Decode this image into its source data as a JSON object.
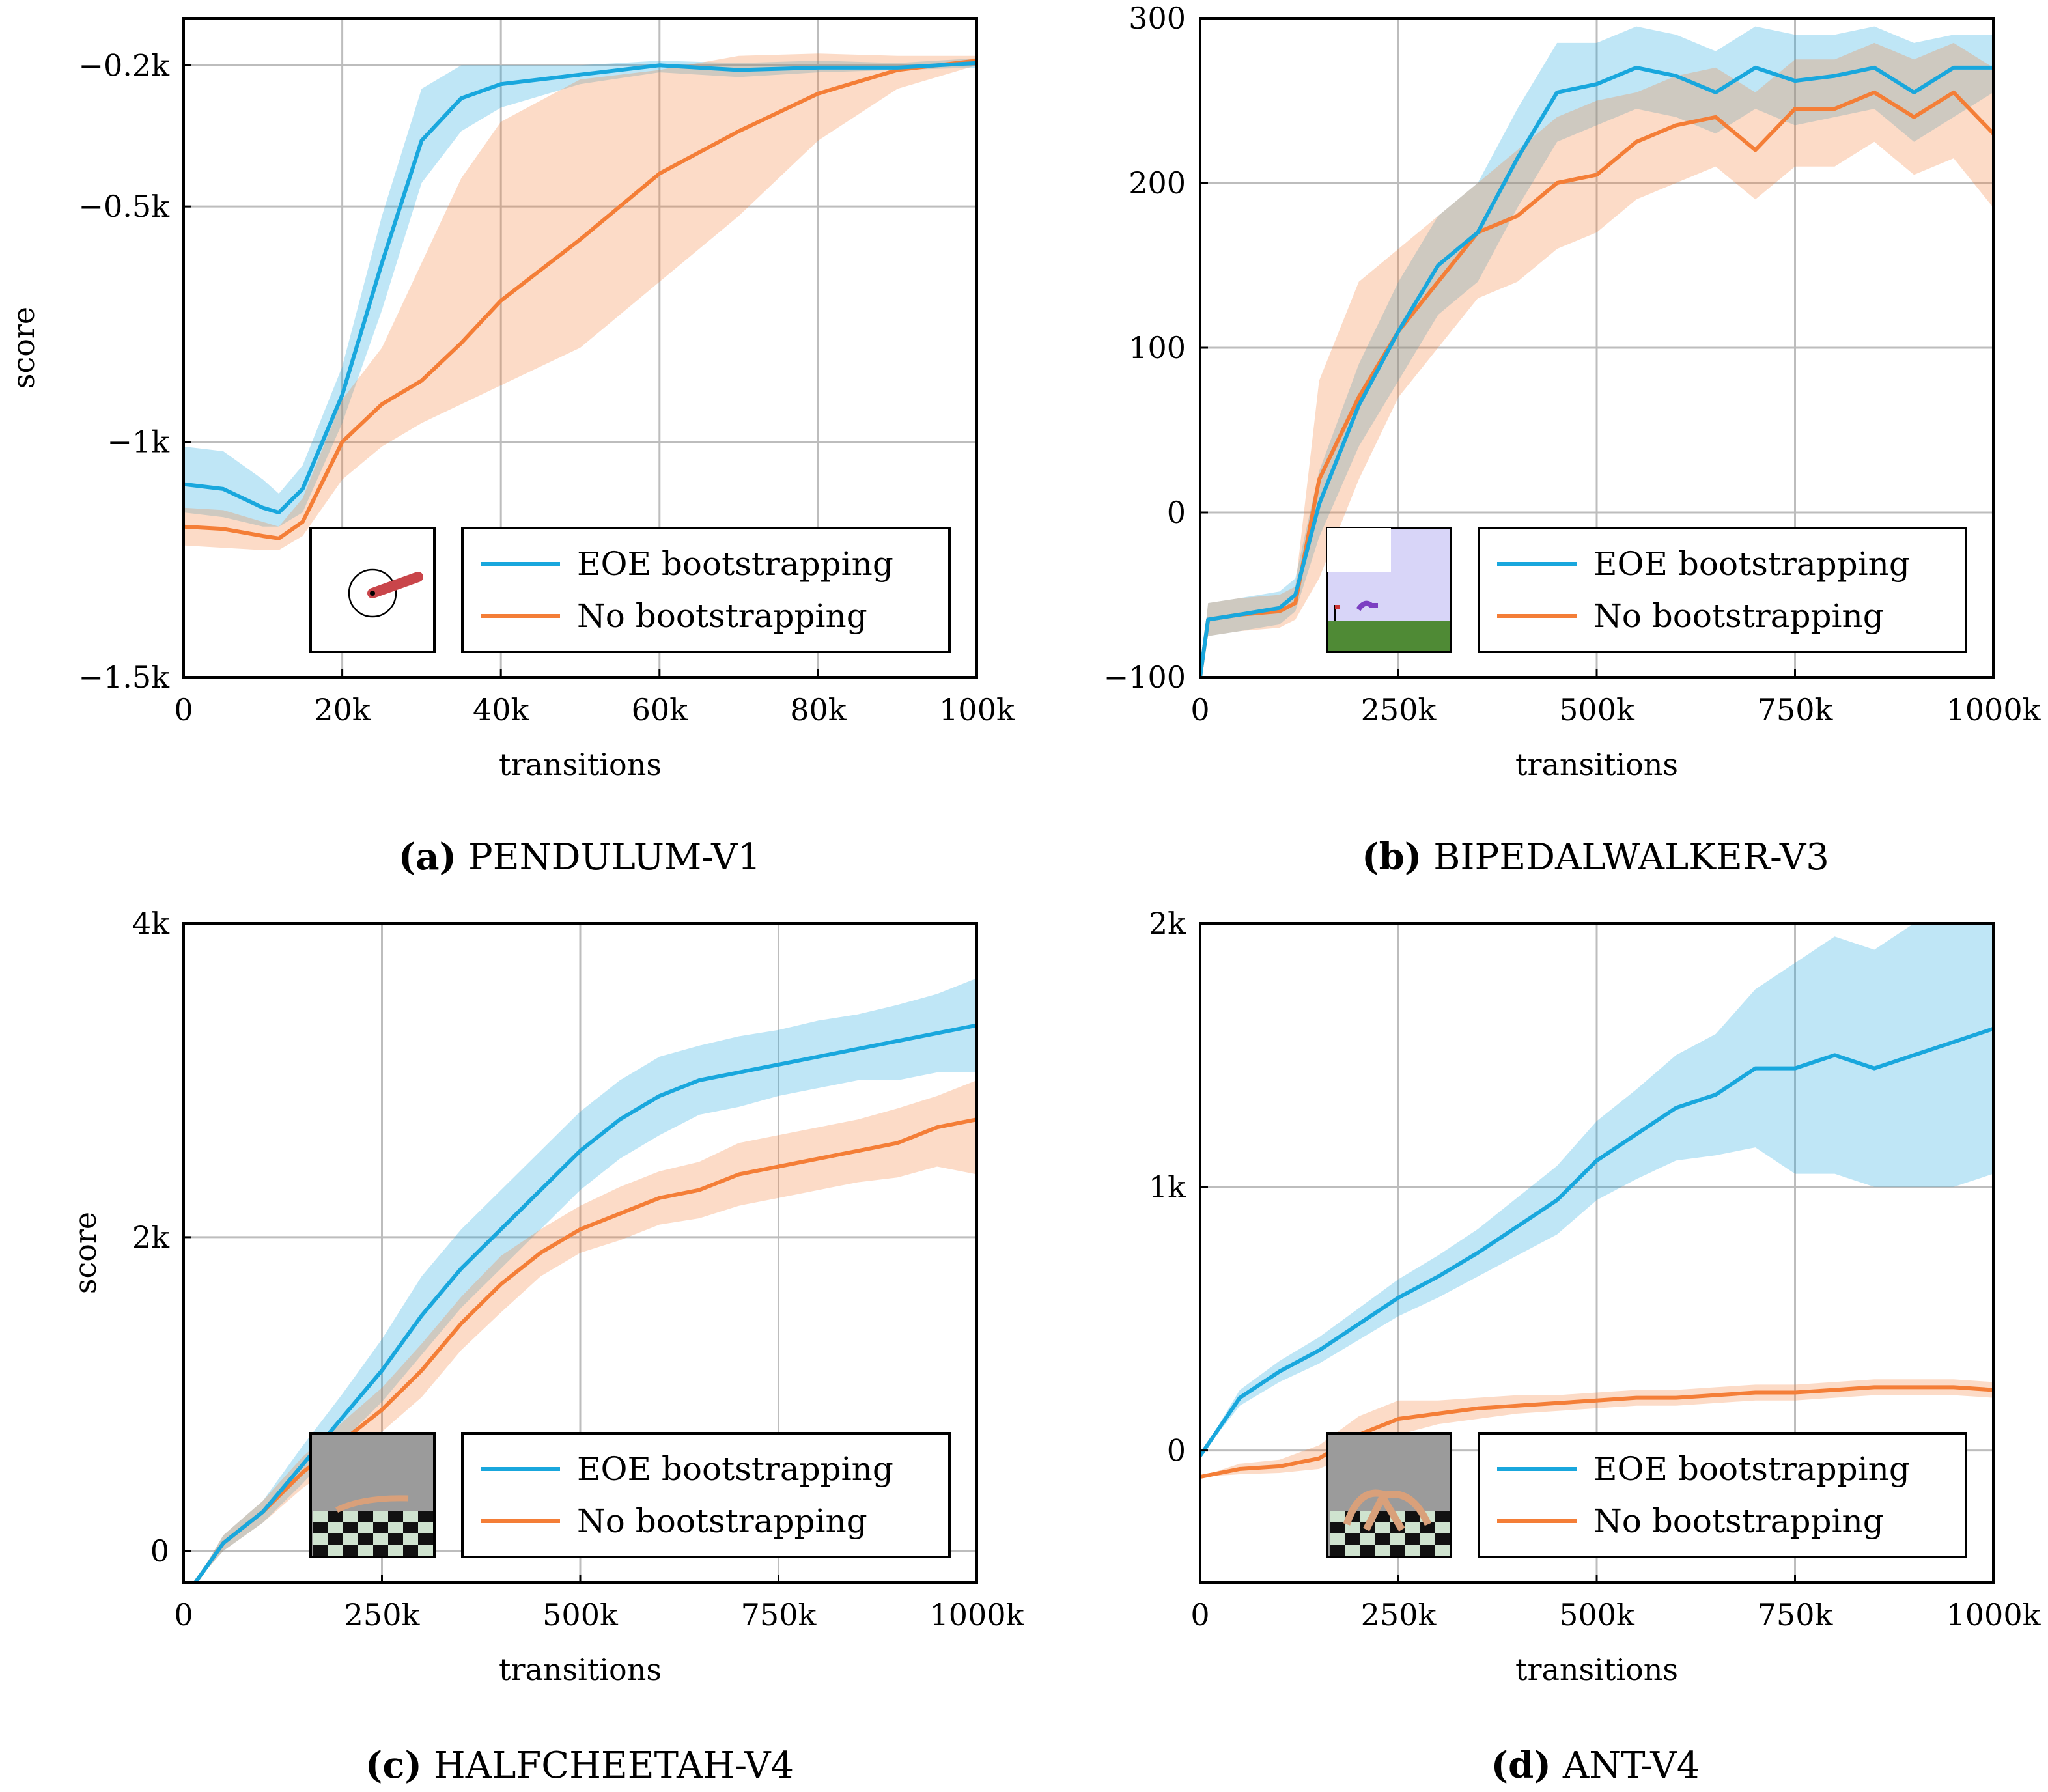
{
  "chart_data": [
    {
      "type": "line",
      "caption_letter": "(a)",
      "caption_env": "PENDULUM-V1",
      "title": "",
      "xlabel": "transitions",
      "ylabel": "score",
      "xlim": [
        0,
        100000
      ],
      "ylim": [
        -1500,
        -100
      ],
      "xticks": [
        0,
        20000,
        40000,
        60000,
        80000,
        100000
      ],
      "xtick_labels": [
        "0",
        "20k",
        "40k",
        "60k",
        "80k",
        "100k"
      ],
      "yticks": [
        -200,
        -500,
        -1000,
        -1500
      ],
      "ytick_labels": [
        "−0.2k",
        "−0.5k",
        "−1k",
        "−1.5k"
      ],
      "grid": true,
      "legend_position": "bottom-right",
      "inset_icon": "pendulum-env-thumbnail",
      "x": [
        0,
        5000,
        10000,
        12000,
        15000,
        20000,
        25000,
        30000,
        35000,
        40000,
        50000,
        60000,
        70000,
        80000,
        90000,
        100000
      ],
      "series": [
        {
          "name": "EOE bootstrapping",
          "color": "#19a7dd",
          "values": [
            -1090,
            -1100,
            -1140,
            -1150,
            -1100,
            -900,
            -620,
            -360,
            -270,
            -240,
            -220,
            -200,
            -210,
            -205,
            -205,
            -195
          ],
          "lower": [
            -1150,
            -1160,
            -1180,
            -1180,
            -1150,
            -960,
            -720,
            -450,
            -340,
            -290,
            -240,
            -215,
            -225,
            -215,
            -210,
            -205
          ],
          "upper": [
            -1010,
            -1020,
            -1080,
            -1110,
            -1050,
            -840,
            -520,
            -250,
            -200,
            -200,
            -200,
            -190,
            -195,
            -190,
            -195,
            -185
          ]
        },
        {
          "name": "No bootstrapping",
          "color": "#f47e37",
          "values": [
            -1180,
            -1185,
            -1200,
            -1205,
            -1170,
            -1000,
            -920,
            -870,
            -790,
            -700,
            -570,
            -430,
            -340,
            -260,
            -210,
            -190
          ],
          "lower": [
            -1220,
            -1225,
            -1230,
            -1230,
            -1200,
            -1080,
            -1010,
            -960,
            -920,
            -880,
            -800,
            -660,
            -520,
            -360,
            -250,
            -200
          ],
          "upper": [
            -1140,
            -1145,
            -1170,
            -1180,
            -1120,
            -910,
            -800,
            -620,
            -440,
            -320,
            -230,
            -210,
            -180,
            -175,
            -180,
            -180
          ]
        }
      ]
    },
    {
      "type": "line",
      "caption_letter": "(b)",
      "caption_env": "BIPEDALWALKER-V3",
      "title": "",
      "xlabel": "transitions",
      "ylabel": "",
      "xlim": [
        0,
        1000000
      ],
      "ylim": [
        -100,
        300
      ],
      "xticks": [
        0,
        250000,
        500000,
        750000,
        1000000
      ],
      "xtick_labels": [
        "0",
        "250k",
        "500k",
        "750k",
        "1000k"
      ],
      "yticks": [
        300,
        200,
        100,
        0,
        -100
      ],
      "ytick_labels": [
        "300",
        "200",
        "100",
        "0",
        "−100"
      ],
      "grid": true,
      "legend_position": "bottom-right",
      "inset_icon": "bipedalwalker-env-thumbnail",
      "x": [
        0,
        10000,
        50000,
        100000,
        120000,
        150000,
        200000,
        250000,
        300000,
        350000,
        400000,
        450000,
        500000,
        550000,
        600000,
        650000,
        700000,
        750000,
        800000,
        850000,
        900000,
        950000,
        1000000
      ],
      "series": [
        {
          "name": "EOE bootstrapping",
          "color": "#19a7dd",
          "values": [
            -100,
            -65,
            -62,
            -58,
            -50,
            5,
            65,
            110,
            150,
            170,
            215,
            255,
            260,
            270,
            265,
            255,
            270,
            262,
            265,
            270,
            255,
            270,
            270
          ],
          "lower": [
            -100,
            -75,
            -72,
            -68,
            -60,
            -15,
            40,
            80,
            120,
            140,
            185,
            225,
            235,
            245,
            240,
            230,
            245,
            235,
            240,
            245,
            225,
            240,
            255
          ],
          "upper": [
            -100,
            -55,
            -52,
            -48,
            -40,
            25,
            90,
            140,
            180,
            200,
            245,
            285,
            285,
            295,
            290,
            280,
            295,
            290,
            290,
            295,
            285,
            290,
            290
          ]
        },
        {
          "name": "No bootstrapping",
          "color": "#f47e37",
          "values": [
            -100,
            -65,
            -62,
            -60,
            -55,
            20,
            70,
            110,
            140,
            170,
            180,
            200,
            205,
            225,
            235,
            240,
            220,
            245,
            245,
            255,
            240,
            255,
            230
          ],
          "lower": [
            -100,
            -75,
            -72,
            -70,
            -65,
            -40,
            20,
            70,
            100,
            130,
            140,
            160,
            170,
            190,
            200,
            210,
            190,
            210,
            210,
            225,
            205,
            215,
            185
          ],
          "upper": [
            -100,
            -55,
            -52,
            -50,
            -45,
            80,
            140,
            160,
            180,
            200,
            220,
            240,
            250,
            255,
            265,
            270,
            255,
            275,
            275,
            285,
            275,
            285,
            270
          ]
        }
      ]
    },
    {
      "type": "line",
      "caption_letter": "(c)",
      "caption_env": "HALFCHEETAH-V4",
      "title": "",
      "xlabel": "transitions",
      "ylabel": "score",
      "xlim": [
        0,
        1000000
      ],
      "ylim": [
        -200,
        4000
      ],
      "xticks": [
        0,
        250000,
        500000,
        750000,
        1000000
      ],
      "xtick_labels": [
        "0",
        "250k",
        "500k",
        "750k",
        "1000k"
      ],
      "yticks": [
        4000,
        2000,
        0
      ],
      "ytick_labels": [
        "4k",
        "2k",
        "0"
      ],
      "grid": true,
      "legend_position": "bottom-right",
      "inset_icon": "halfcheetah-env-thumbnail",
      "x": [
        15000,
        50000,
        100000,
        150000,
        200000,
        250000,
        300000,
        350000,
        400000,
        450000,
        500000,
        550000,
        600000,
        650000,
        700000,
        750000,
        800000,
        850000,
        900000,
        950000,
        1000000
      ],
      "series": [
        {
          "name": "EOE bootstrapping",
          "color": "#19a7dd",
          "values": [
            -200,
            50,
            250,
            550,
            850,
            1150,
            1500,
            1800,
            2050,
            2300,
            2550,
            2750,
            2900,
            3000,
            3050,
            3100,
            3150,
            3200,
            3250,
            3300,
            3350
          ],
          "lower": [
            -200,
            0,
            180,
            430,
            700,
            950,
            1250,
            1550,
            1800,
            2050,
            2300,
            2500,
            2650,
            2780,
            2830,
            2900,
            2950,
            3000,
            3000,
            3050,
            3050
          ],
          "upper": [
            -200,
            100,
            320,
            670,
            1000,
            1350,
            1750,
            2050,
            2300,
            2550,
            2800,
            3000,
            3150,
            3220,
            3280,
            3320,
            3380,
            3420,
            3480,
            3550,
            3650
          ]
        },
        {
          "name": "No bootstrapping",
          "color": "#f47e37",
          "values": [
            -200,
            50,
            250,
            500,
            700,
            900,
            1150,
            1450,
            1700,
            1900,
            2050,
            2150,
            2250,
            2300,
            2400,
            2450,
            2500,
            2550,
            2600,
            2700,
            2750
          ],
          "lower": [
            -200,
            0,
            180,
            400,
            580,
            760,
            980,
            1280,
            1520,
            1750,
            1900,
            1980,
            2080,
            2120,
            2200,
            2250,
            2300,
            2350,
            2380,
            2450,
            2400
          ],
          "upper": [
            -200,
            100,
            320,
            600,
            820,
            1040,
            1320,
            1620,
            1880,
            2050,
            2200,
            2320,
            2420,
            2480,
            2600,
            2650,
            2700,
            2750,
            2820,
            2900,
            3000
          ]
        }
      ]
    },
    {
      "type": "line",
      "caption_letter": "(d)",
      "caption_env": "ANT-V4",
      "title": "",
      "xlabel": "transitions",
      "ylabel": "",
      "xlim": [
        0,
        1000000
      ],
      "ylim": [
        -500,
        2000
      ],
      "xticks": [
        0,
        250000,
        500000,
        750000,
        1000000
      ],
      "xtick_labels": [
        "0",
        "250k",
        "500k",
        "750k",
        "1000k"
      ],
      "yticks": [
        2000,
        1000,
        0
      ],
      "ytick_labels": [
        "2k",
        "1k",
        "0"
      ],
      "grid": true,
      "legend_position": "bottom-right",
      "inset_icon": "ant-env-thumbnail",
      "x": [
        0,
        50000,
        100000,
        150000,
        200000,
        250000,
        300000,
        350000,
        400000,
        450000,
        500000,
        550000,
        600000,
        650000,
        700000,
        750000,
        800000,
        850000,
        900000,
        950000,
        1000000
      ],
      "series": [
        {
          "name": "EOE bootstrapping",
          "color": "#19a7dd",
          "values": [
            -20,
            200,
            300,
            380,
            480,
            580,
            660,
            750,
            850,
            950,
            1100,
            1200,
            1300,
            1350,
            1450,
            1450,
            1500,
            1450,
            1500,
            1550,
            1600
          ],
          "lower": [
            -20,
            170,
            260,
            330,
            420,
            510,
            580,
            660,
            740,
            820,
            950,
            1030,
            1100,
            1120,
            1150,
            1050,
            1050,
            1000,
            1000,
            1000,
            1050
          ],
          "upper": [
            -20,
            230,
            340,
            430,
            540,
            650,
            740,
            840,
            960,
            1080,
            1250,
            1370,
            1500,
            1580,
            1750,
            1850,
            1950,
            1900,
            2000,
            2000,
            2000
          ]
        },
        {
          "name": "No bootstrapping",
          "color": "#f47e37",
          "values": [
            -100,
            -70,
            -60,
            -30,
            60,
            120,
            140,
            160,
            170,
            180,
            190,
            200,
            200,
            210,
            220,
            220,
            230,
            240,
            240,
            240,
            230
          ],
          "lower": [
            -100,
            -90,
            -85,
            -70,
            0,
            60,
            100,
            120,
            140,
            150,
            160,
            170,
            170,
            180,
            190,
            190,
            200,
            210,
            210,
            210,
            200
          ],
          "upper": [
            -100,
            -50,
            -35,
            20,
            130,
            190,
            190,
            200,
            210,
            210,
            220,
            230,
            230,
            240,
            250,
            250,
            260,
            270,
            270,
            270,
            260
          ]
        }
      ]
    }
  ]
}
